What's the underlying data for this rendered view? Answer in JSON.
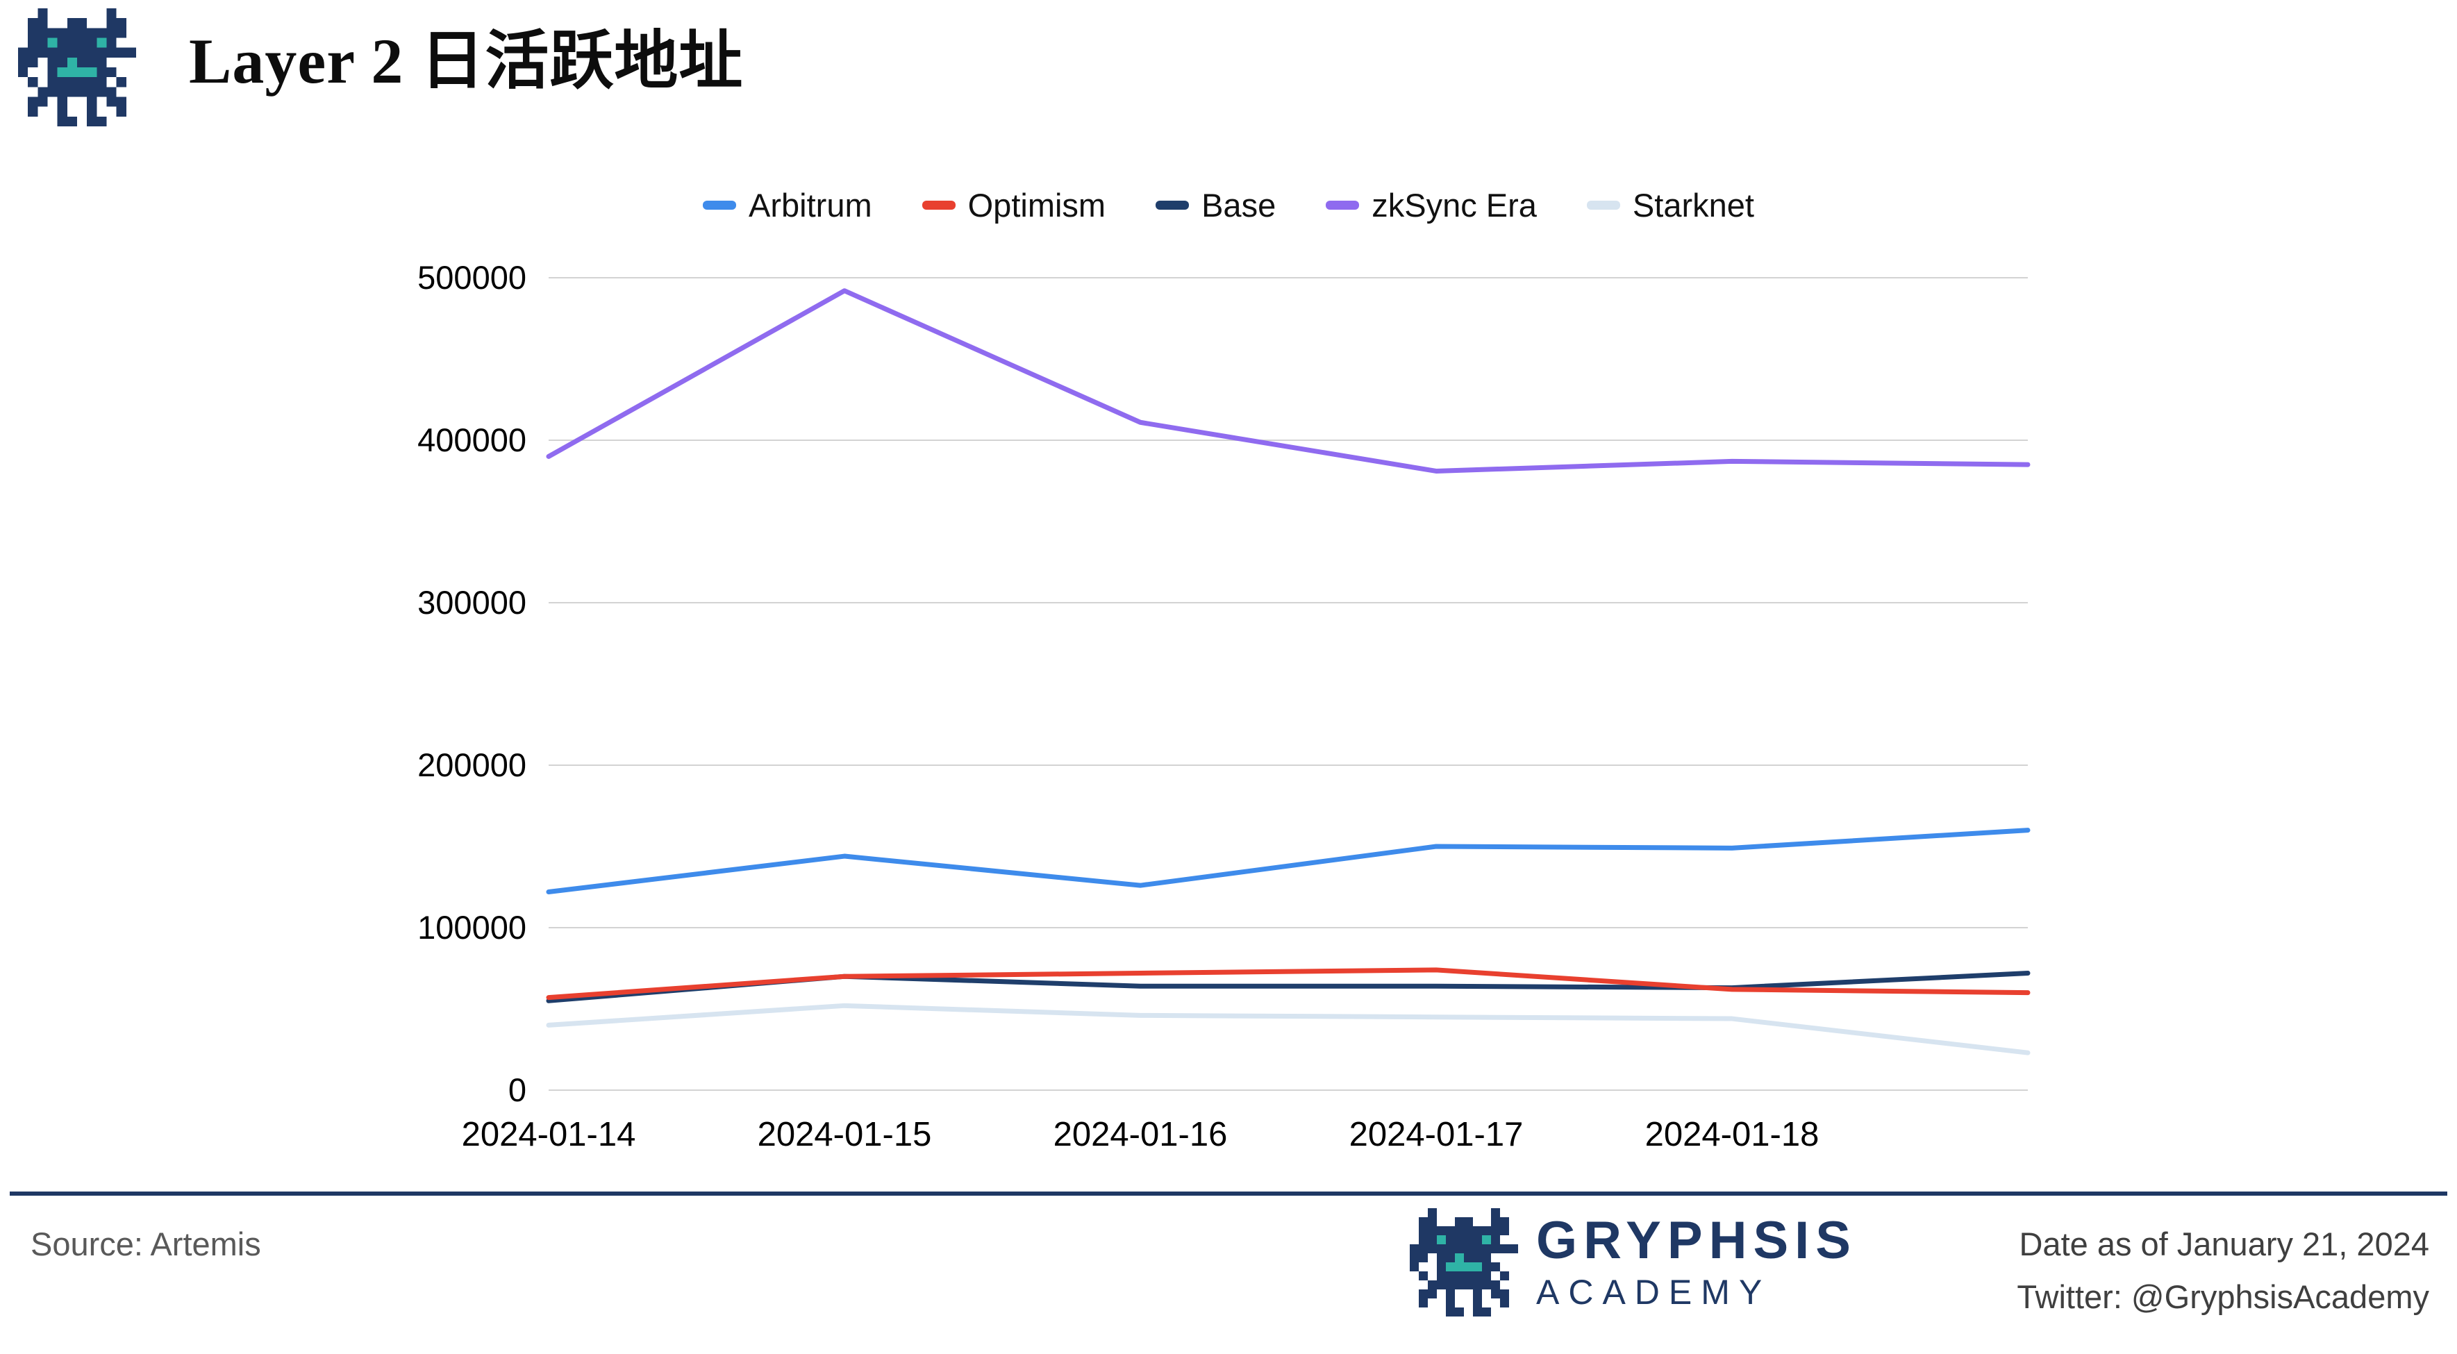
{
  "header": {
    "title": "Layer 2 日活跃地址",
    "logo_icon": "gryphsis-dragon-logo"
  },
  "chart_data": {
    "type": "line",
    "title": "Layer 2 日活跃地址",
    "x_tick_labels": [
      "2024-01-14",
      "2024-01-15",
      "2024-01-16",
      "2024-01-17",
      "2024-01-18",
      ""
    ],
    "series": [
      {
        "name": "Arbitrum",
        "color": "#3E8BEB",
        "values": [
          122000,
          144000,
          126000,
          150000,
          149000,
          160000
        ]
      },
      {
        "name": "Optimism",
        "color": "#E8402F",
        "values": [
          57000,
          70000,
          72000,
          74000,
          62000,
          60000
        ]
      },
      {
        "name": "Base",
        "color": "#1F3E6B",
        "values": [
          55000,
          70000,
          64000,
          64000,
          63000,
          72000
        ]
      },
      {
        "name": "zkSync Era",
        "color": "#8F6BEF",
        "values": [
          390000,
          492000,
          411000,
          381000,
          387000,
          385000
        ]
      },
      {
        "name": "Starknet",
        "color": "#D7E4F0",
        "values": [
          40000,
          52000,
          46000,
          45000,
          44000,
          23000
        ]
      }
    ],
    "y_ticks": [
      0,
      100000,
      200000,
      300000,
      400000,
      500000
    ],
    "ylim": [
      0,
      500000
    ],
    "grid": true,
    "legend_position": "top",
    "gridline_color": "#d3d3d3",
    "axis_text_color": "#000000"
  },
  "footer": {
    "source": "Source: Artemis",
    "brand_name": "GRYPHSIS",
    "brand_subtitle": "ACADEMY",
    "date": "Date as of January 21, 2024",
    "twitter": "Twitter: @GryphsisAcademy"
  },
  "colors": {
    "divider": "#1F3864",
    "brand": "#1F3864",
    "logo_navy": "#1F3864",
    "logo_teal": "#2FB3A6"
  }
}
